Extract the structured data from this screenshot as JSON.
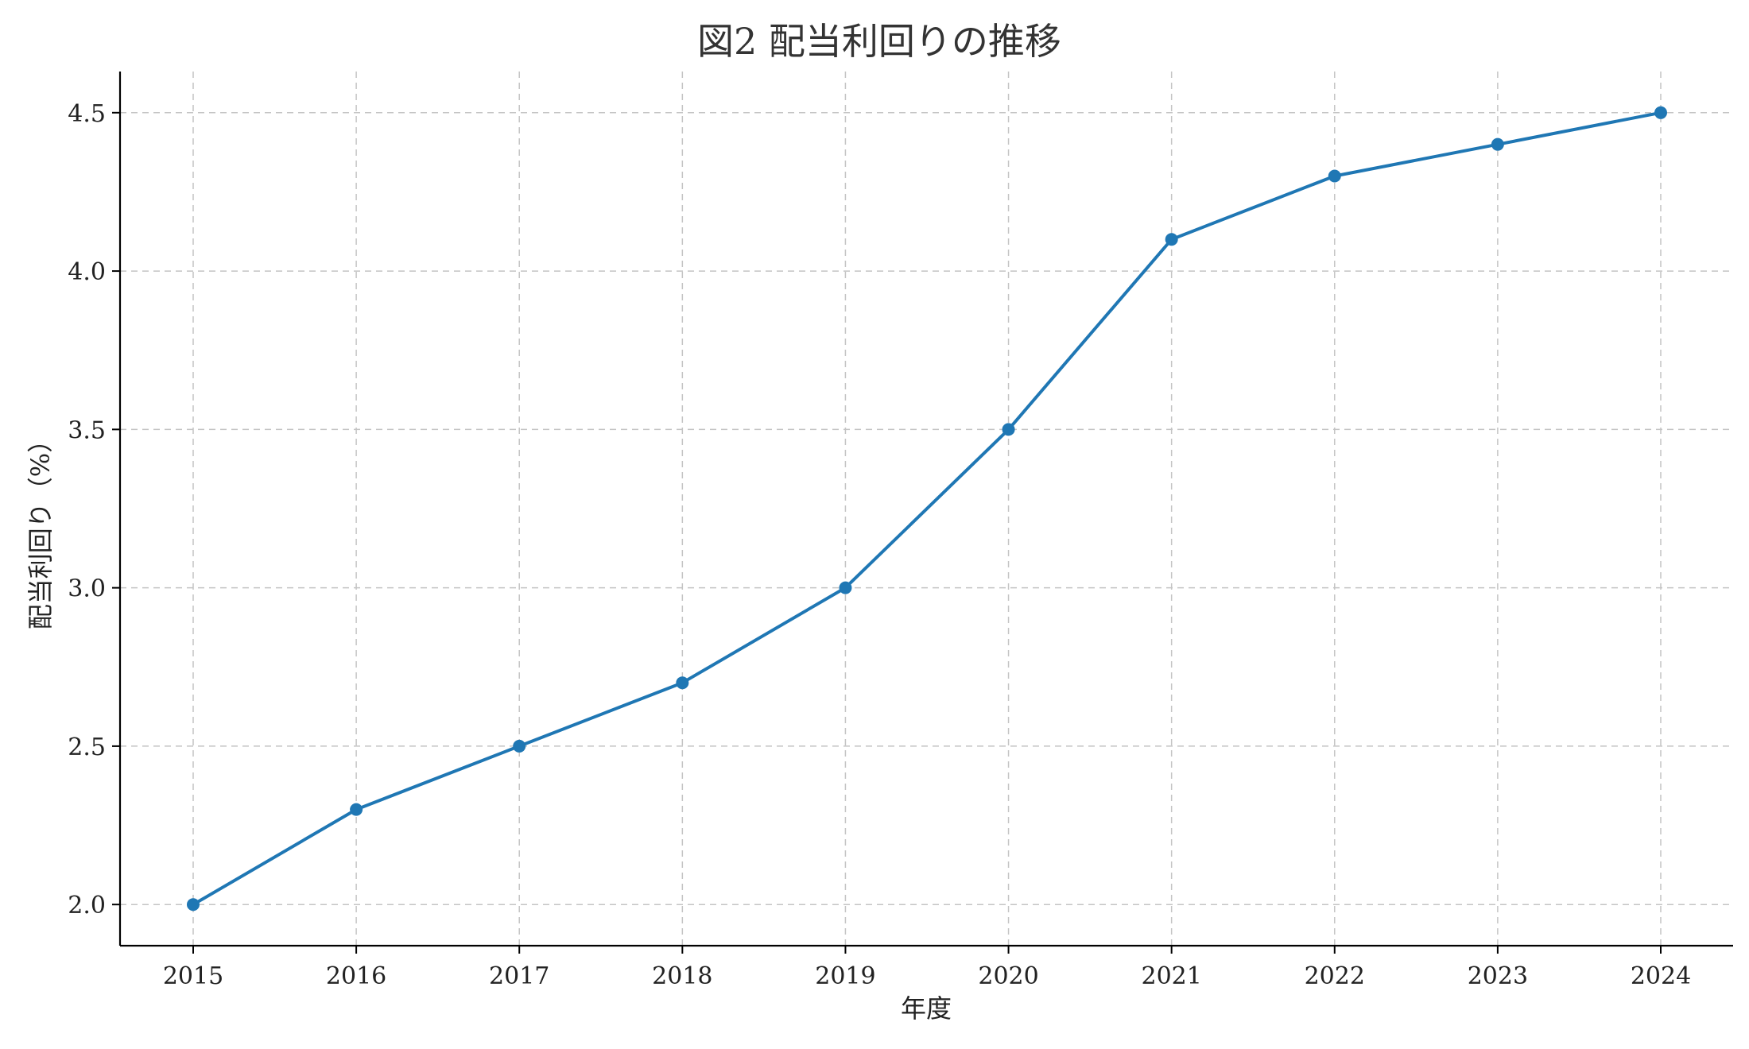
{
  "chart_data": {
    "type": "line",
    "title": "図2 配当利回りの推移",
    "xlabel": "年度",
    "ylabel": "配当利回り（%）",
    "x": [
      "2015",
      "2016",
      "2017",
      "2018",
      "2019",
      "2020",
      "2021",
      "2022",
      "2023",
      "2024"
    ],
    "series": [
      {
        "values": [
          2.0,
          2.3,
          2.5,
          2.7,
          3.0,
          3.5,
          4.1,
          4.3,
          4.4,
          4.5
        ],
        "color": "#1f77b4",
        "marker": "circle"
      }
    ],
    "y_ticks": [
      "2.0",
      "2.5",
      "3.0",
      "3.5",
      "4.0",
      "4.5"
    ],
    "ylim": [
      1.87,
      4.63
    ],
    "grid": true,
    "legend": "none"
  }
}
